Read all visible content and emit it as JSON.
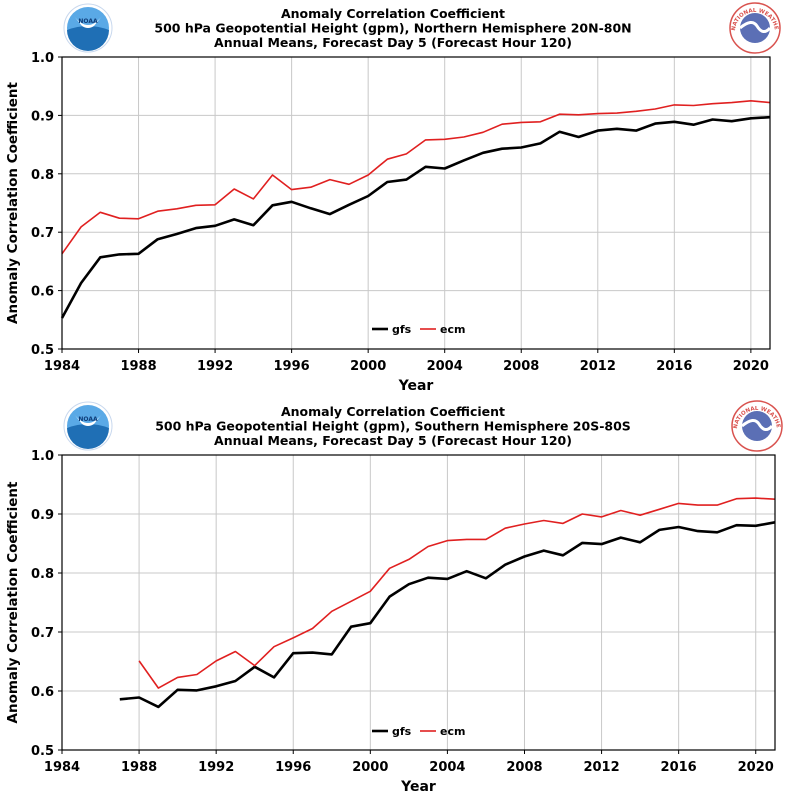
{
  "chart_data": [
    {
      "type": "line",
      "title": "Anomaly Correlation Coefficient",
      "subtitle_lines": [
        "500 hPa Geopotential Height (gpm), Northern Hemisphere 20N-80N",
        "Annual Means, Forecast Day 5 (Forecast Hour 120)"
      ],
      "xlabel": "Year",
      "ylabel": "Anomaly Correlation Coefficient",
      "xlim": [
        1984,
        2021
      ],
      "ylim": [
        0.5,
        1.0
      ],
      "xticks": [
        "1984",
        "1988",
        "1992",
        "1996",
        "2000",
        "2004",
        "2008",
        "2012",
        "2016",
        "2020"
      ],
      "yticks": [
        "0.5",
        "0.6",
        "0.7",
        "0.8",
        "0.9",
        "1.0"
      ],
      "grid": true,
      "legend_position": "bottom-center",
      "series": [
        {
          "name": "gfs",
          "color": "#000000",
          "x": [
            1984,
            1985,
            1986,
            1987,
            1988,
            1989,
            1990,
            1991,
            1992,
            1993,
            1994,
            1995,
            1996,
            1997,
            1998,
            1999,
            2000,
            2001,
            2002,
            2003,
            2004,
            2005,
            2006,
            2007,
            2008,
            2009,
            2010,
            2011,
            2012,
            2013,
            2014,
            2015,
            2016,
            2017,
            2018,
            2019,
            2020,
            2021
          ],
          "y": [
            0.553,
            0.613,
            0.657,
            0.662,
            0.663,
            0.688,
            0.697,
            0.707,
            0.711,
            0.722,
            0.712,
            0.746,
            0.752,
            0.741,
            0.731,
            0.747,
            0.762,
            0.786,
            0.79,
            0.812,
            0.809,
            0.823,
            0.836,
            0.843,
            0.845,
            0.852,
            0.872,
            0.863,
            0.874,
            0.877,
            0.874,
            0.886,
            0.889,
            0.884,
            0.893,
            0.89,
            0.895,
            0.897
          ]
        },
        {
          "name": "ecm",
          "color": "#e02020",
          "x": [
            1984,
            1985,
            1986,
            1987,
            1988,
            1989,
            1990,
            1991,
            1992,
            1993,
            1994,
            1995,
            1996,
            1997,
            1998,
            1999,
            2000,
            2001,
            2002,
            2003,
            2004,
            2005,
            2006,
            2007,
            2008,
            2009,
            2010,
            2011,
            2012,
            2013,
            2014,
            2015,
            2016,
            2017,
            2018,
            2019,
            2020,
            2021
          ],
          "y": [
            0.663,
            0.709,
            0.734,
            0.724,
            0.723,
            0.736,
            0.74,
            0.746,
            0.747,
            0.774,
            0.757,
            0.798,
            0.773,
            0.777,
            0.79,
            0.782,
            0.798,
            0.825,
            0.834,
            0.858,
            0.859,
            0.863,
            0.871,
            0.885,
            0.888,
            0.889,
            0.902,
            0.901,
            0.903,
            0.904,
            0.907,
            0.911,
            0.918,
            0.917,
            0.92,
            0.922,
            0.925,
            0.922
          ]
        }
      ]
    },
    {
      "type": "line",
      "title": "Anomaly Correlation Coefficient",
      "subtitle_lines": [
        "500 hPa Geopotential Height (gpm), Southern Hemisphere 20S-80S",
        "Annual Means, Forecast Day 5 (Forecast Hour 120)"
      ],
      "xlabel": "Year",
      "ylabel": "Anomaly Correlation Coefficient",
      "xlim": [
        1984,
        2021
      ],
      "ylim": [
        0.5,
        1.0
      ],
      "xticks": [
        "1984",
        "1988",
        "1992",
        "1996",
        "2000",
        "2004",
        "2008",
        "2012",
        "2016",
        "2020"
      ],
      "yticks": [
        "0.5",
        "0.6",
        "0.7",
        "0.8",
        "0.9",
        "1.0"
      ],
      "grid": true,
      "legend_position": "bottom-center",
      "series": [
        {
          "name": "gfs",
          "color": "#000000",
          "x": [
            1987,
            1988,
            1989,
            1990,
            1991,
            1992,
            1993,
            1994,
            1995,
            1996,
            1997,
            1998,
            1999,
            2000,
            2001,
            2002,
            2003,
            2004,
            2005,
            2006,
            2007,
            2008,
            2009,
            2010,
            2011,
            2012,
            2013,
            2014,
            2015,
            2016,
            2017,
            2018,
            2019,
            2020,
            2021
          ],
          "y": [
            0.586,
            0.589,
            0.573,
            0.602,
            0.601,
            0.608,
            0.617,
            0.641,
            0.623,
            0.664,
            0.665,
            0.662,
            0.709,
            0.715,
            0.76,
            0.781,
            0.792,
            0.79,
            0.803,
            0.791,
            0.814,
            0.828,
            0.838,
            0.83,
            0.851,
            0.849,
            0.86,
            0.852,
            0.873,
            0.878,
            0.871,
            0.869,
            0.881,
            0.88,
            0.886
          ]
        },
        {
          "name": "ecm",
          "color": "#e02020",
          "x": [
            1988,
            1989,
            1990,
            1991,
            1992,
            1993,
            1994,
            1995,
            1996,
            1997,
            1998,
            1999,
            2000,
            2001,
            2002,
            2003,
            2004,
            2005,
            2006,
            2007,
            2008,
            2009,
            2010,
            2011,
            2012,
            2013,
            2014,
            2015,
            2016,
            2017,
            2018,
            2019,
            2020,
            2021
          ],
          "y": [
            0.651,
            0.605,
            0.623,
            0.628,
            0.651,
            0.667,
            0.643,
            0.675,
            0.69,
            0.706,
            0.735,
            0.752,
            0.769,
            0.808,
            0.823,
            0.845,
            0.855,
            0.857,
            0.857,
            0.876,
            0.883,
            0.889,
            0.884,
            0.9,
            0.895,
            0.906,
            0.898,
            0.908,
            0.918,
            0.915,
            0.915,
            0.926,
            0.927,
            0.925
          ]
        }
      ]
    }
  ],
  "logos": {
    "noaa": {
      "text": "NOAA",
      "colors": [
        "#1f6fb5",
        "#5aa9e6",
        "#ffffff"
      ]
    },
    "nws": {
      "text": "NATIONAL WEATHER SERVICE",
      "colors": [
        "#d9534f",
        "#5b6fb5",
        "#ffffff"
      ]
    }
  }
}
